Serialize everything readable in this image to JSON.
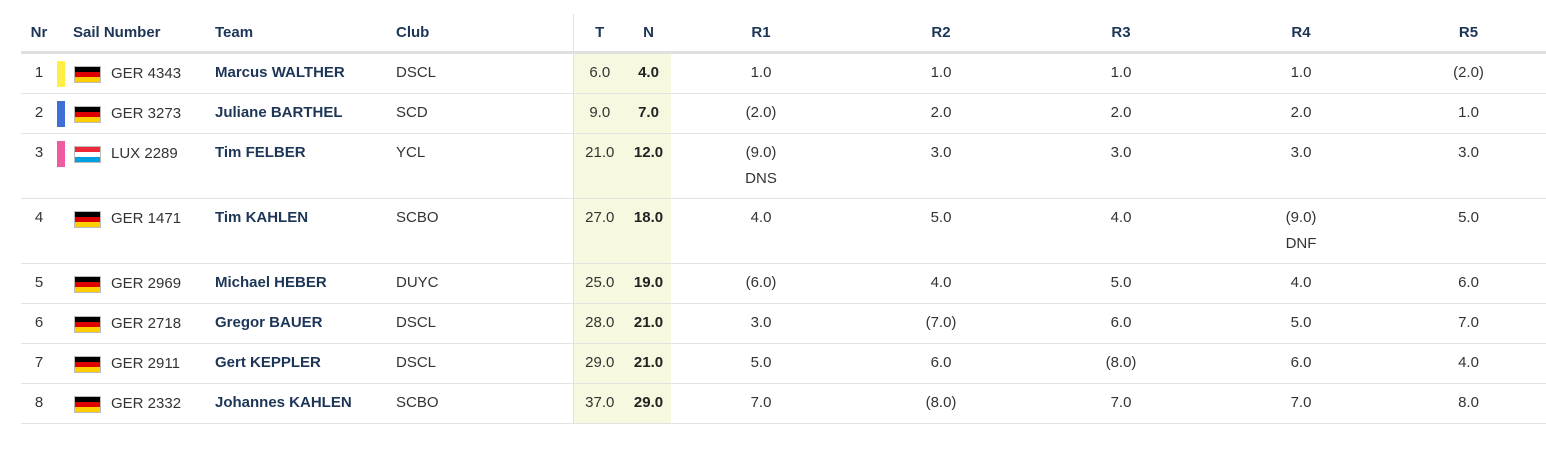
{
  "headers": {
    "nr": "Nr",
    "sail": "Sail Number",
    "team": "Team",
    "club": "Club",
    "total": "T",
    "net": "N",
    "races": [
      "R1",
      "R2",
      "R3",
      "R4",
      "R5"
    ]
  },
  "colors": {
    "header_text": "#1d3557",
    "highlight_bg": "#f8f8e0",
    "yellow": "#ffee44",
    "blue": "#3f6fd6",
    "pink": "#ef5ba1"
  },
  "rows": [
    {
      "nr": "1",
      "stripe": "#ffee44",
      "flag": "GER",
      "sail": "GER 4343",
      "team": "Marcus WALTHER",
      "club": "DSCL",
      "total": "6.0",
      "net": "4.0",
      "races": [
        {
          "v": "1.0",
          "c": ""
        },
        {
          "v": "1.0",
          "c": ""
        },
        {
          "v": "1.0",
          "c": ""
        },
        {
          "v": "1.0",
          "c": ""
        },
        {
          "v": "(2.0)",
          "c": ""
        }
      ]
    },
    {
      "nr": "2",
      "stripe": "#3f6fd6",
      "flag": "GER",
      "sail": "GER 3273",
      "team": "Juliane BARTHEL",
      "club": "SCD",
      "total": "9.0",
      "net": "7.0",
      "races": [
        {
          "v": "(2.0)",
          "c": ""
        },
        {
          "v": "2.0",
          "c": ""
        },
        {
          "v": "2.0",
          "c": ""
        },
        {
          "v": "2.0",
          "c": ""
        },
        {
          "v": "1.0",
          "c": ""
        }
      ]
    },
    {
      "nr": "3",
      "stripe": "#ef5ba1",
      "flag": "LUX",
      "sail": "LUX 2289",
      "team": "Tim FELBER",
      "club": "YCL",
      "total": "21.0",
      "net": "12.0",
      "races": [
        {
          "v": "(9.0)",
          "c": "DNS"
        },
        {
          "v": "3.0",
          "c": ""
        },
        {
          "v": "3.0",
          "c": ""
        },
        {
          "v": "3.0",
          "c": ""
        },
        {
          "v": "3.0",
          "c": ""
        }
      ]
    },
    {
      "nr": "4",
      "stripe": "",
      "flag": "GER",
      "sail": "GER 1471",
      "team": "Tim KAHLEN",
      "club": "SCBO",
      "total": "27.0",
      "net": "18.0",
      "races": [
        {
          "v": "4.0",
          "c": ""
        },
        {
          "v": "5.0",
          "c": ""
        },
        {
          "v": "4.0",
          "c": ""
        },
        {
          "v": "(9.0)",
          "c": "DNF"
        },
        {
          "v": "5.0",
          "c": ""
        }
      ]
    },
    {
      "nr": "5",
      "stripe": "",
      "flag": "GER",
      "sail": "GER 2969",
      "team": "Michael HEBER",
      "club": "DUYC",
      "total": "25.0",
      "net": "19.0",
      "races": [
        {
          "v": "(6.0)",
          "c": ""
        },
        {
          "v": "4.0",
          "c": ""
        },
        {
          "v": "5.0",
          "c": ""
        },
        {
          "v": "4.0",
          "c": ""
        },
        {
          "v": "6.0",
          "c": ""
        }
      ]
    },
    {
      "nr": "6",
      "stripe": "",
      "flag": "GER",
      "sail": "GER 2718",
      "team": "Gregor BAUER",
      "club": "DSCL",
      "total": "28.0",
      "net": "21.0",
      "races": [
        {
          "v": "3.0",
          "c": ""
        },
        {
          "v": "(7.0)",
          "c": ""
        },
        {
          "v": "6.0",
          "c": ""
        },
        {
          "v": "5.0",
          "c": ""
        },
        {
          "v": "7.0",
          "c": ""
        }
      ]
    },
    {
      "nr": "7",
      "stripe": "",
      "flag": "GER",
      "sail": "GER 2911",
      "team": "Gert KEPPLER",
      "club": "DSCL",
      "total": "29.0",
      "net": "21.0",
      "races": [
        {
          "v": "5.0",
          "c": ""
        },
        {
          "v": "6.0",
          "c": ""
        },
        {
          "v": "(8.0)",
          "c": ""
        },
        {
          "v": "6.0",
          "c": ""
        },
        {
          "v": "4.0",
          "c": ""
        }
      ]
    },
    {
      "nr": "8",
      "stripe": "",
      "flag": "GER",
      "sail": "GER 2332",
      "team": "Johannes KAHLEN",
      "club": "SCBO",
      "total": "37.0",
      "net": "29.0",
      "races": [
        {
          "v": "7.0",
          "c": ""
        },
        {
          "v": "(8.0)",
          "c": ""
        },
        {
          "v": "7.0",
          "c": ""
        },
        {
          "v": "7.0",
          "c": ""
        },
        {
          "v": "8.0",
          "c": ""
        }
      ]
    }
  ]
}
